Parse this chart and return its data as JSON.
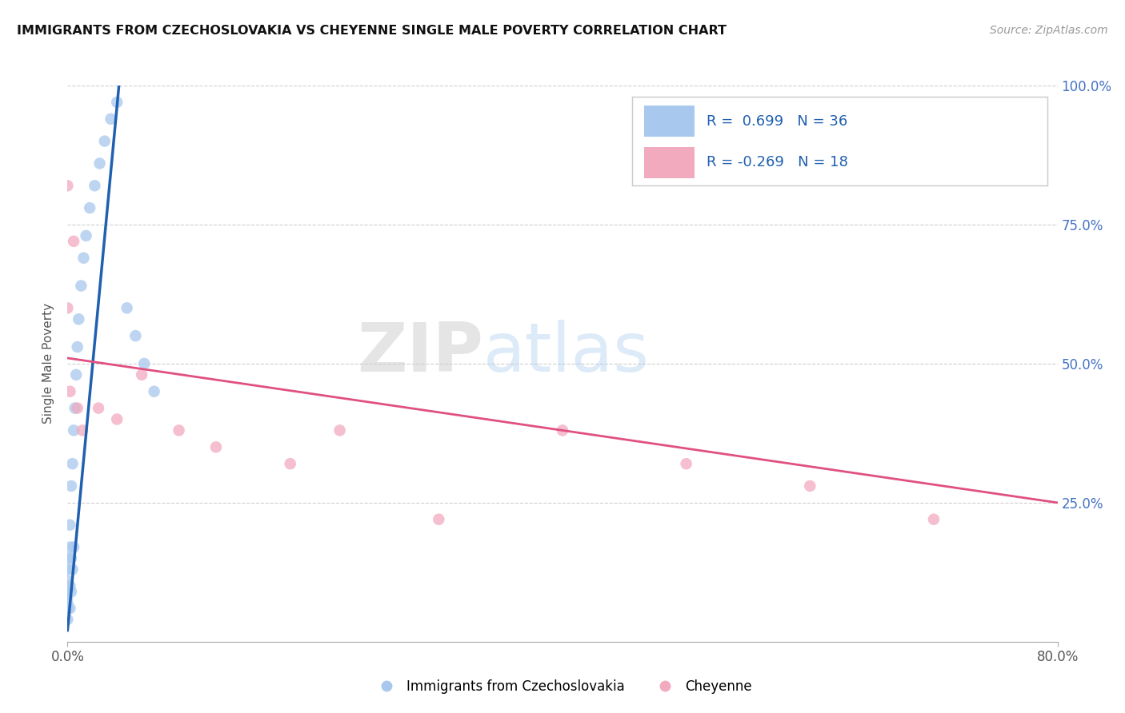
{
  "title": "IMMIGRANTS FROM CZECHOSLOVAKIA VS CHEYENNE SINGLE MALE POVERTY CORRELATION CHART",
  "source": "Source: ZipAtlas.com",
  "ylabel": "Single Male Poverty",
  "legend_label1": "Immigrants from Czechoslovakia",
  "legend_label2": "Cheyenne",
  "R1": 0.699,
  "N1": 36,
  "R2": -0.269,
  "N2": 18,
  "xlim": [
    0.0,
    0.8
  ],
  "ylim": [
    0.0,
    1.0
  ],
  "color_blue": "#A8C8EE",
  "color_pink": "#F2AABF",
  "color_line_blue": "#2060B0",
  "color_line_pink": "#E05080",
  "watermark_ZIP": "ZIP",
  "watermark_atlas": "atlas",
  "blue_dots_x": [
    0.0,
    0.0,
    0.0,
    0.0,
    0.0,
    0.0,
    0.0,
    0.0,
    0.002,
    0.002,
    0.002,
    0.002,
    0.003,
    0.003,
    0.003,
    0.004,
    0.004,
    0.005,
    0.005,
    0.006,
    0.007,
    0.008,
    0.009,
    0.011,
    0.013,
    0.015,
    0.018,
    0.022,
    0.026,
    0.03,
    0.035,
    0.04,
    0.048,
    0.055,
    0.062,
    0.07
  ],
  "blue_dots_y": [
    0.04,
    0.06,
    0.07,
    0.08,
    0.09,
    0.11,
    0.13,
    0.15,
    0.06,
    0.1,
    0.17,
    0.21,
    0.09,
    0.15,
    0.28,
    0.13,
    0.32,
    0.17,
    0.38,
    0.42,
    0.48,
    0.53,
    0.58,
    0.64,
    0.69,
    0.73,
    0.78,
    0.82,
    0.86,
    0.9,
    0.94,
    0.97,
    0.6,
    0.55,
    0.5,
    0.45
  ],
  "pink_dots_x": [
    0.0,
    0.0,
    0.002,
    0.005,
    0.008,
    0.012,
    0.025,
    0.04,
    0.06,
    0.09,
    0.12,
    0.18,
    0.22,
    0.3,
    0.4,
    0.5,
    0.6,
    0.7
  ],
  "pink_dots_y": [
    0.82,
    0.6,
    0.45,
    0.72,
    0.42,
    0.38,
    0.42,
    0.4,
    0.48,
    0.38,
    0.35,
    0.32,
    0.38,
    0.22,
    0.38,
    0.32,
    0.28,
    0.22
  ],
  "blue_line_x0": 0.0,
  "blue_line_y0": 0.02,
  "blue_line_x1": 0.042,
  "blue_line_y1": 1.01,
  "pink_line_x0": 0.0,
  "pink_line_y0": 0.51,
  "pink_line_x1": 0.8,
  "pink_line_y1": 0.25,
  "background_color": "#FFFFFF",
  "grid_color": "#BBBBBB"
}
